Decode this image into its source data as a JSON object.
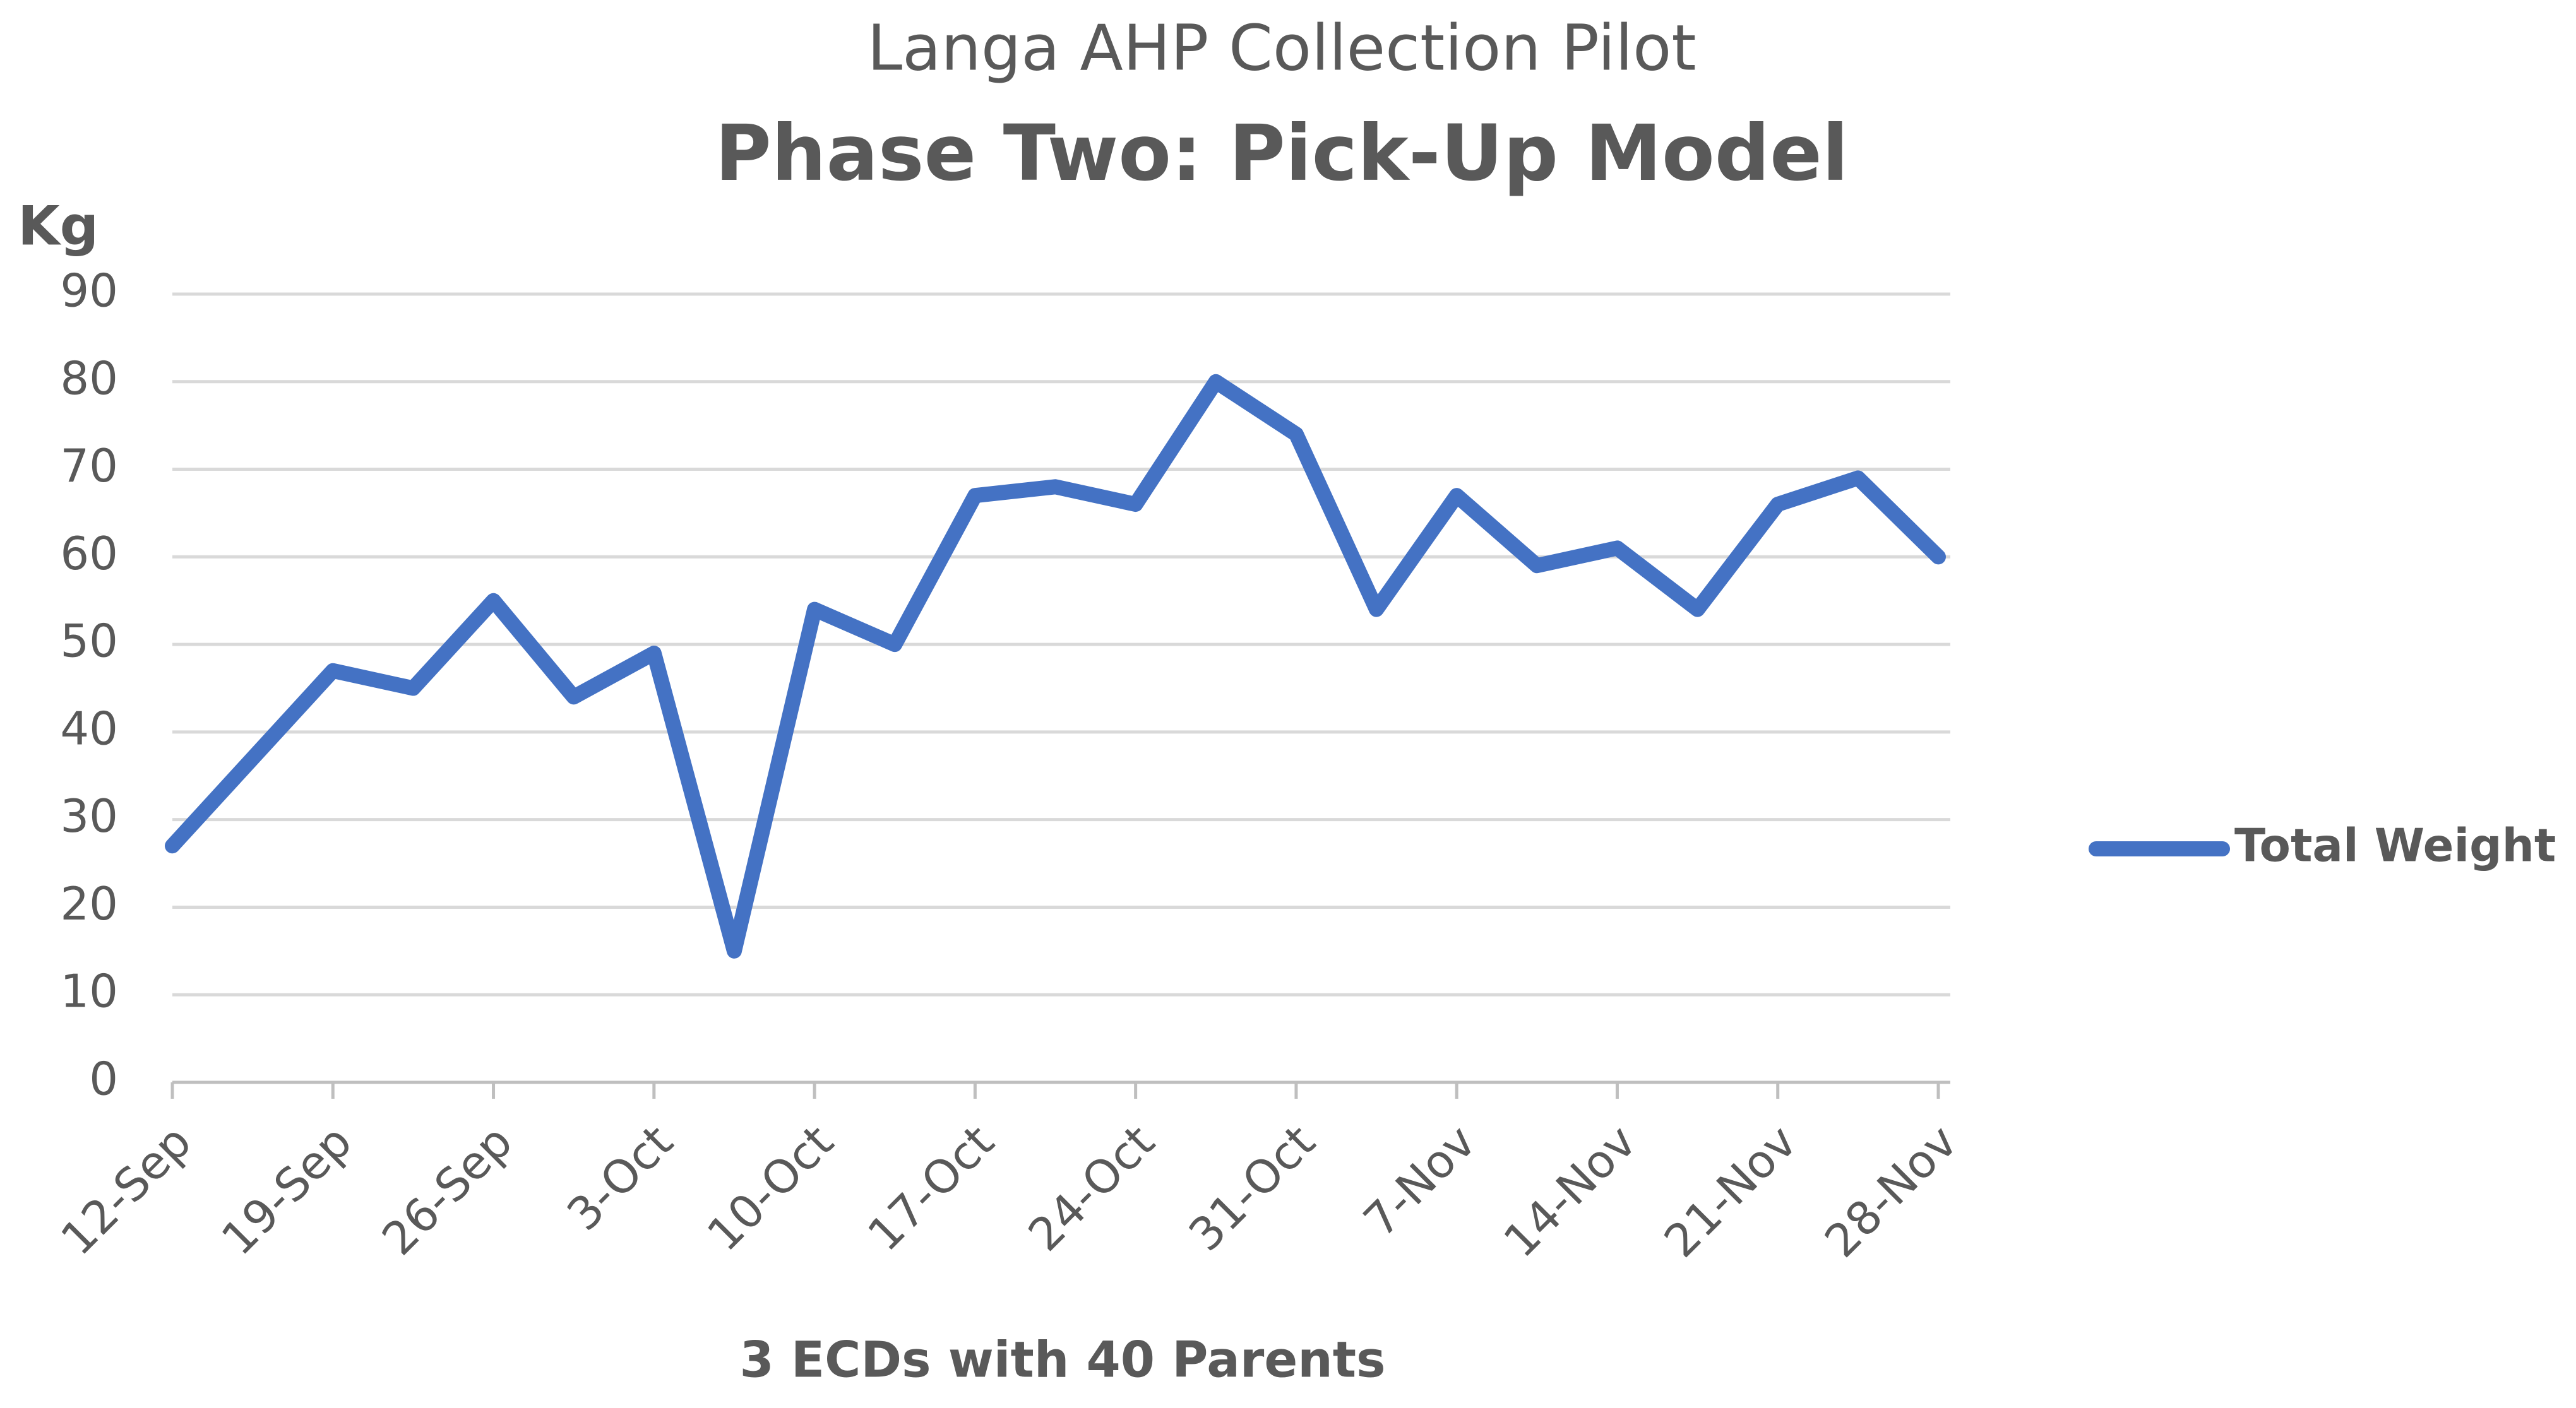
{
  "chart_data": {
    "type": "line",
    "title": "Langa AHP Collection Pilot",
    "subtitle": "Phase Two: Pick-Up Model",
    "y_label": "Kg",
    "x_label": "3 ECDs with 40 Parents",
    "categories": [
      "12-Sep",
      null,
      "19-Sep",
      null,
      "26-Sep",
      null,
      "3-Oct",
      null,
      "10-Oct",
      null,
      "17-Oct",
      null,
      "24-Oct",
      null,
      "31-Oct",
      null,
      "7-Nov",
      null,
      "14-Nov",
      null,
      "21-Nov",
      null,
      "28-Nov"
    ],
    "series": [
      {
        "name": "Total Weight",
        "color": "#4472c4",
        "values": [
          27,
          37,
          47,
          45,
          55,
          44,
          49,
          15,
          54,
          50,
          67,
          68,
          66,
          80,
          74,
          54,
          67,
          59,
          61,
          54,
          66,
          69,
          60
        ]
      }
    ],
    "ylim": [
      0,
      90
    ],
    "yticks": [
      0,
      10,
      20,
      30,
      40,
      50,
      60,
      70,
      80,
      90
    ],
    "grid": true,
    "legend": "right"
  }
}
